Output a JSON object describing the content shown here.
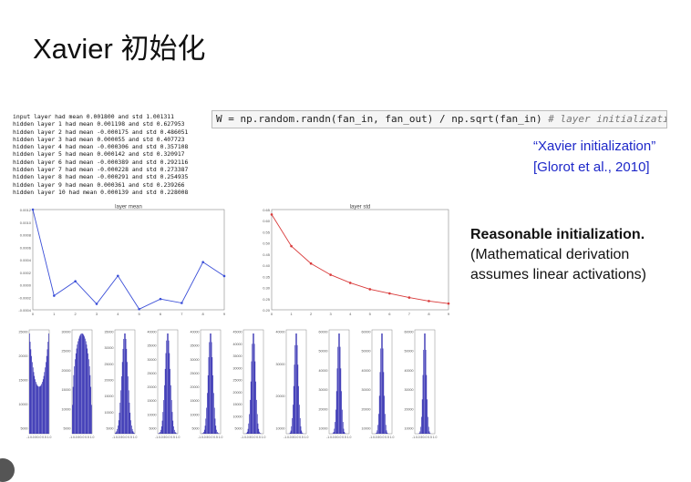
{
  "slide": {
    "title": "Xavier 初始化",
    "code_main": "W = np.random.randn(fan_in, fan_out) / np.sqrt(fan_in)",
    "code_comment": " # layer initialization",
    "citation_line1": "“Xavier initialization”",
    "citation_line2": "[Glorot et al., 2010]",
    "reason_bold": "Reasonable initialization.",
    "reason_line2": "(Mathematical derivation",
    "reason_line3": "assumes linear activations)"
  },
  "stats_lines": [
    "input layer had mean 0.001800 and std 1.001311",
    "hidden layer 1 had mean 0.001198 and std 0.627953",
    "hidden layer 2 had mean -0.000175 and std 0.486051",
    "hidden layer 3 had mean 0.000055 and std 0.407723",
    "hidden layer 4 had mean -0.000306 and std 0.357108",
    "hidden layer 5 had mean 0.000142 and std 0.320917",
    "hidden layer 6 had mean -0.000389 and std 0.292116",
    "hidden layer 7 had mean -0.000228 and std 0.273387",
    "hidden layer 8 had mean -0.000291 and std 0.254935",
    "hidden layer 9 had mean 0.000361 and std 0.239266",
    "hidden layer 10 had mean 0.000139 and std 0.228008"
  ],
  "chart_data": [
    {
      "type": "line",
      "title": "layer mean",
      "x": [
        0,
        1,
        2,
        3,
        4,
        5,
        6,
        7,
        8,
        9
      ],
      "values": [
        0.0012,
        -0.000175,
        5.5e-05,
        -0.000306,
        0.000142,
        -0.000389,
        -0.000228,
        -0.000291,
        0.000361,
        0.000139
      ],
      "ylim": [
        -0.0004,
        0.0012
      ],
      "xlim": [
        0,
        9
      ],
      "yticks": [
        "-0.0004",
        "-0.0002",
        "0.0000",
        "0.0002",
        "0.0004",
        "0.0006",
        "0.0008",
        "0.0010",
        "0.0012"
      ],
      "xticks": [
        "0",
        "1",
        "2",
        "3",
        "4",
        "5",
        "6",
        "7",
        "8",
        "9"
      ],
      "color": "#3b4fd8"
    },
    {
      "type": "line",
      "title": "layer std",
      "x": [
        0,
        1,
        2,
        3,
        4,
        5,
        6,
        7,
        8,
        9
      ],
      "values": [
        0.627953,
        0.486051,
        0.407723,
        0.357108,
        0.320917,
        0.292116,
        0.273387,
        0.254935,
        0.239266,
        0.228008
      ],
      "ylim": [
        0.2,
        0.65
      ],
      "xlim": [
        0,
        9
      ],
      "yticks": [
        "0.20",
        "0.25",
        "0.30",
        "0.35",
        "0.40",
        "0.45",
        "0.50",
        "0.55",
        "0.60",
        "0.65"
      ],
      "xticks": [
        "0",
        "1",
        "2",
        "3",
        "4",
        "5",
        "6",
        "7",
        "8",
        "9"
      ],
      "color": "#d93a3a"
    },
    {
      "type": "bar",
      "title": "",
      "histograms": [
        {
          "shape": "u",
          "ymax": 25000,
          "yticks": [
            "25000",
            "20000",
            "15000",
            "10000",
            "5000"
          ],
          "xticks": [
            "-1.0",
            "-0.5",
            "0.0",
            "0.5",
            "1.0"
          ]
        },
        {
          "shape": "dome",
          "ymax": 30000,
          "yticks": [
            "30000",
            "25000",
            "20000",
            "15000",
            "10000",
            "5000"
          ],
          "xticks": [
            "-1.0",
            "-0.5",
            "0.0",
            "0.5",
            "1.0"
          ]
        },
        {
          "shape": "bell",
          "ymax": 35000,
          "yticks": [
            "35000",
            "30000",
            "25000",
            "20000",
            "15000",
            "10000",
            "5000"
          ],
          "xticks": [
            "-1.0",
            "-0.5",
            "0.0",
            "0.5",
            "1.0"
          ]
        },
        {
          "shape": "bell",
          "ymax": 40000,
          "yticks": [
            "40000",
            "35000",
            "30000",
            "25000",
            "20000",
            "15000",
            "10000",
            "5000"
          ],
          "xticks": [
            "-1.0",
            "-0.5",
            "0.0",
            "0.5",
            "1.0"
          ]
        },
        {
          "shape": "bell",
          "ymax": 40000,
          "yticks": [
            "40000",
            "35000",
            "30000",
            "25000",
            "20000",
            "15000",
            "10000",
            "5000"
          ],
          "xticks": [
            "-1.0",
            "-0.5",
            "0.0",
            "0.5",
            "1.0"
          ]
        },
        {
          "shape": "bell",
          "ymax": 45000,
          "yticks": [
            "45000",
            "40000",
            "35000",
            "30000",
            "25000",
            "20000",
            "15000",
            "10000",
            "5000"
          ],
          "xticks": [
            "-1.0",
            "-0.5",
            "0.0",
            "0.5",
            "1.0"
          ]
        },
        {
          "shape": "bell",
          "ymax": 40000,
          "yticks": [
            "40000",
            "30000",
            "20000",
            "10000"
          ],
          "xticks": [
            "-1.0",
            "-0.5",
            "0.0",
            "0.5",
            "1.0"
          ]
        },
        {
          "shape": "bell",
          "ymax": 50000,
          "yticks": [
            "60000",
            "50000",
            "40000",
            "30000",
            "20000",
            "10000"
          ],
          "xticks": [
            "-1.0",
            "-0.5",
            "0.0",
            "0.5",
            "1.0"
          ]
        },
        {
          "shape": "bell",
          "ymax": 60000,
          "yticks": [
            "60000",
            "50000",
            "40000",
            "30000",
            "20000",
            "10000"
          ],
          "xticks": [
            "-1.0",
            "-0.5",
            "0.0",
            "0.5",
            "1.0"
          ]
        },
        {
          "shape": "bell",
          "ymax": 60000,
          "yticks": [
            "60000",
            "50000",
            "40000",
            "30000",
            "20000",
            "10000"
          ],
          "xticks": [
            "-1.0",
            "-0.5",
            "0.0",
            "0.5",
            "1.0"
          ]
        }
      ],
      "color": "#1a16a8"
    }
  ]
}
